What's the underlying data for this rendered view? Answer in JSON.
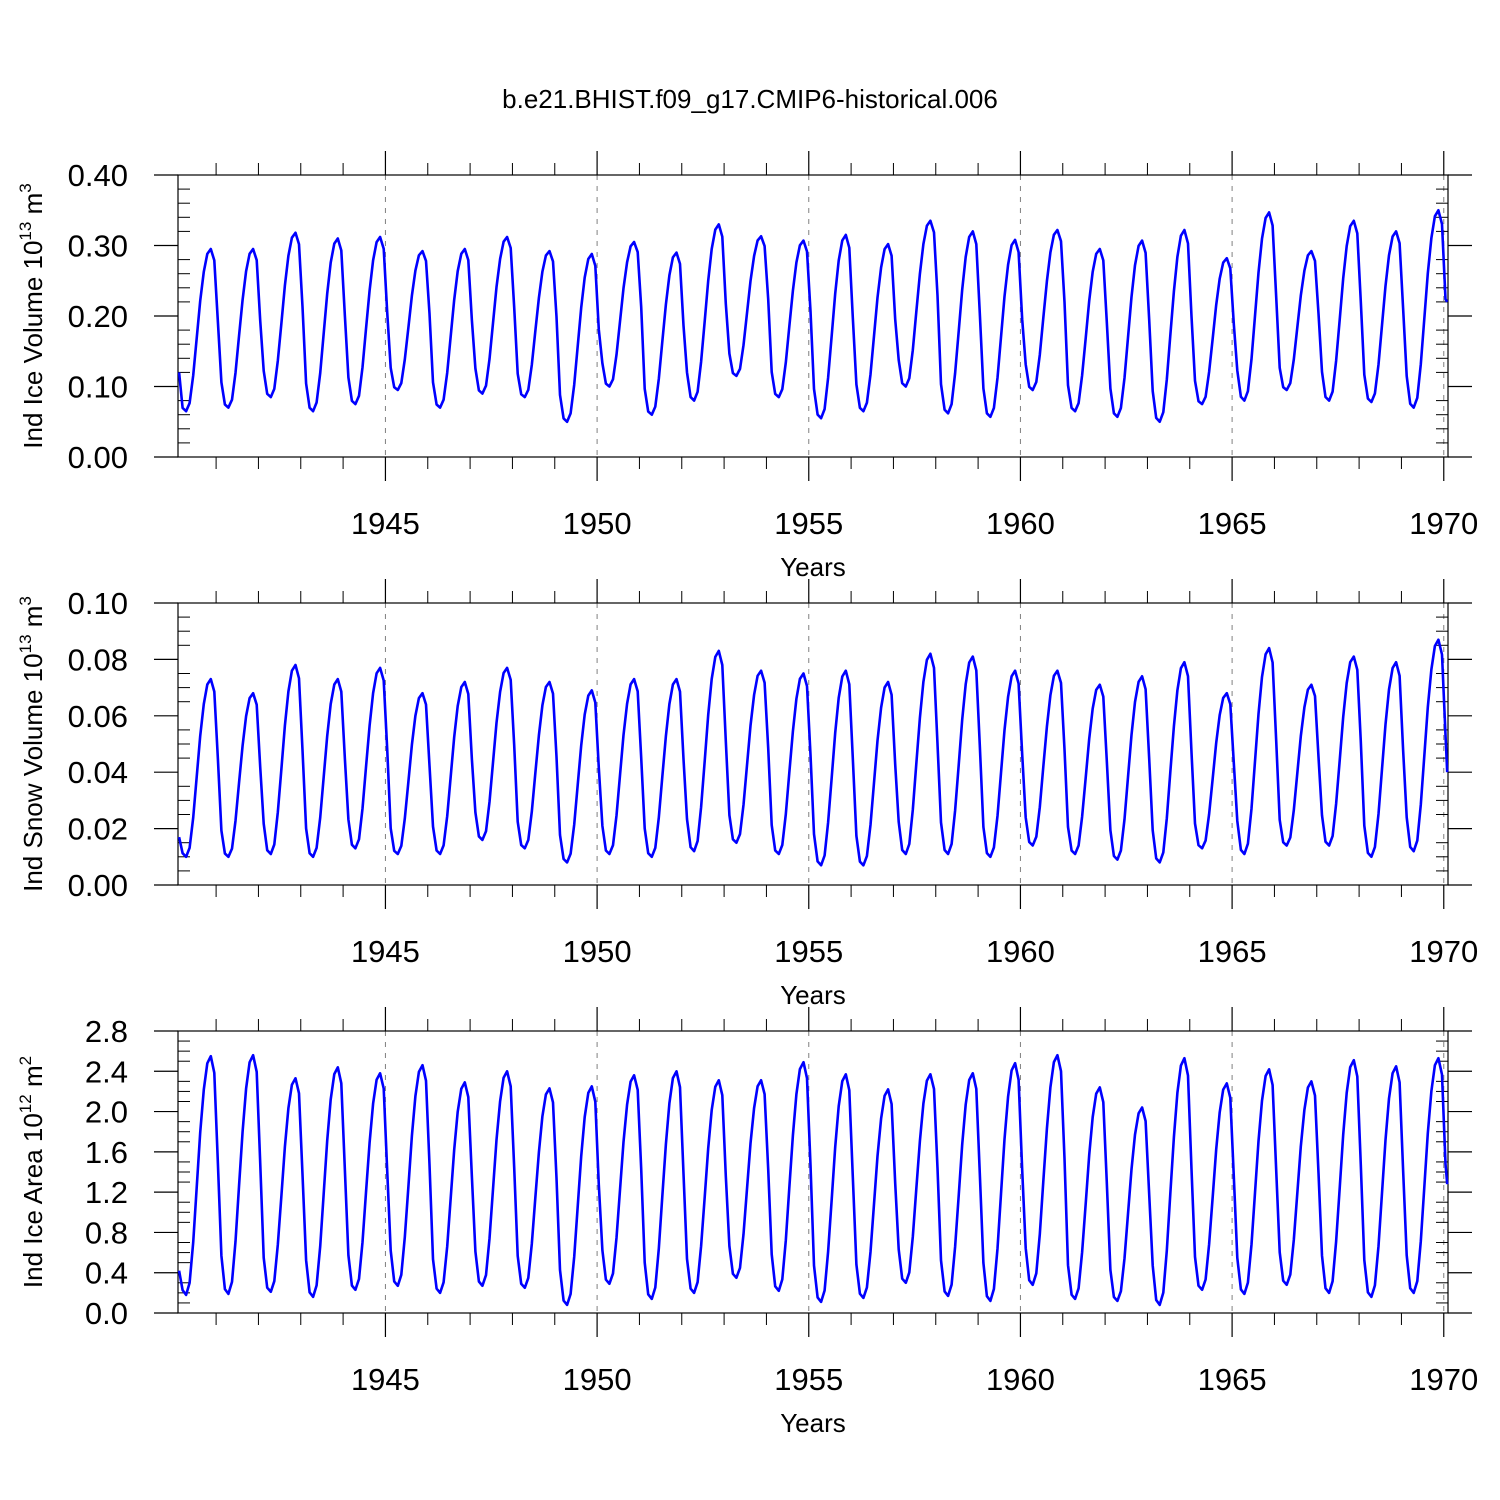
{
  "title": "b.e21.BHIST.f09_g17.CMIP6-historical.006",
  "colors": {
    "line": "#0000ff",
    "frame": "#000000",
    "grid": "#808080"
  },
  "chart_data": [
    {
      "type": "line",
      "id": "ice-volume",
      "ylabel_main": "Ind Ice Volume 10",
      "ylabel_exp": "13",
      "ylabel_unit": " m",
      "ylabel_unit_exp": "3",
      "xlabel": "Years",
      "xlim": [
        1940.1,
        1970.1
      ],
      "ylim": [
        0,
        0.4
      ],
      "yticks": [
        0.0,
        0.1,
        0.2,
        0.3,
        0.4
      ],
      "ytick_labels": [
        "0.00",
        "0.10",
        "0.20",
        "0.30",
        "0.40"
      ],
      "yminor_step": 0.02,
      "xticks": [
        1945,
        1950,
        1955,
        1960,
        1965,
        1970
      ],
      "xtick_labels": [
        "1945",
        "1950",
        "1955",
        "1960",
        "1965",
        "1970"
      ],
      "xminor_step": 1,
      "grid": "vertical-dashed",
      "series": [
        {
          "name": "Ind Ice Volume",
          "x_start": 1940.125,
          "x_step": 0.08333,
          "annual_min": [
            0.065,
            0.07,
            0.085,
            0.065,
            0.075,
            0.095,
            0.07,
            0.09,
            0.085,
            0.05,
            0.1,
            0.06,
            0.08,
            0.115,
            0.085,
            0.055,
            0.065,
            0.1,
            0.062,
            0.057,
            0.095,
            0.065,
            0.057,
            0.05,
            0.075,
            0.08,
            0.095,
            0.08,
            0.078,
            0.07
          ],
          "annual_max": [
            0.295,
            0.295,
            0.318,
            0.31,
            0.312,
            0.292,
            0.295,
            0.312,
            0.292,
            0.288,
            0.305,
            0.29,
            0.33,
            0.313,
            0.307,
            0.315,
            0.302,
            0.335,
            0.32,
            0.308,
            0.322,
            0.295,
            0.307,
            0.322,
            0.282,
            0.347,
            0.292,
            0.335,
            0.32,
            0.35
          ],
          "start_value": 0.12,
          "end_value": 0.22
        }
      ]
    },
    {
      "type": "line",
      "id": "snow-volume",
      "ylabel_main": "Ind Snow Volume 10",
      "ylabel_exp": "13",
      "ylabel_unit": " m",
      "ylabel_unit_exp": "3",
      "xlabel": "Years",
      "xlim": [
        1940.1,
        1970.1
      ],
      "ylim": [
        0,
        0.1
      ],
      "yticks": [
        0.0,
        0.02,
        0.04,
        0.06,
        0.08,
        0.1
      ],
      "ytick_labels": [
        "0.00",
        "0.02",
        "0.04",
        "0.06",
        "0.08",
        "0.10"
      ],
      "yminor_step": 0.005,
      "xticks": [
        1945,
        1950,
        1955,
        1960,
        1965,
        1970
      ],
      "xtick_labels": [
        "1945",
        "1950",
        "1955",
        "1960",
        "1965",
        "1970"
      ],
      "xminor_step": 1,
      "grid": "vertical-dashed",
      "series": [
        {
          "name": "Ind Snow Volume",
          "x_start": 1940.125,
          "x_step": 0.08333,
          "annual_min": [
            0.01,
            0.01,
            0.011,
            0.01,
            0.013,
            0.011,
            0.011,
            0.016,
            0.013,
            0.008,
            0.011,
            0.01,
            0.012,
            0.015,
            0.011,
            0.007,
            0.007,
            0.011,
            0.011,
            0.01,
            0.014,
            0.011,
            0.009,
            0.008,
            0.013,
            0.011,
            0.014,
            0.014,
            0.01,
            0.012
          ],
          "annual_max": [
            0.073,
            0.068,
            0.078,
            0.073,
            0.077,
            0.068,
            0.072,
            0.077,
            0.072,
            0.069,
            0.073,
            0.073,
            0.083,
            0.076,
            0.075,
            0.076,
            0.072,
            0.082,
            0.081,
            0.076,
            0.076,
            0.071,
            0.074,
            0.079,
            0.068,
            0.084,
            0.071,
            0.081,
            0.079,
            0.087
          ],
          "start_value": 0.017,
          "end_value": 0.04
        }
      ]
    },
    {
      "type": "line",
      "id": "ice-area",
      "ylabel_main": "Ind Ice Area 10",
      "ylabel_exp": "12",
      "ylabel_unit": " m",
      "ylabel_unit_exp": "2",
      "xlabel": "Years",
      "xlim": [
        1940.1,
        1970.1
      ],
      "ylim": [
        0,
        2.8
      ],
      "yticks": [
        0.0,
        0.4,
        0.8,
        1.2,
        1.6,
        2.0,
        2.4,
        2.8
      ],
      "ytick_labels": [
        "0.0",
        "0.4",
        "0.8",
        "1.2",
        "1.6",
        "2.0",
        "2.4",
        "2.8"
      ],
      "yminor_step": 0.1,
      "xticks": [
        1945,
        1950,
        1955,
        1960,
        1965,
        1970
      ],
      "xtick_labels": [
        "1945",
        "1950",
        "1955",
        "1960",
        "1965",
        "1970"
      ],
      "xminor_step": 1,
      "grid": "vertical-dashed",
      "series": [
        {
          "name": "Ind Ice Area",
          "x_start": 1940.125,
          "x_step": 0.08333,
          "annual_min": [
            0.18,
            0.19,
            0.21,
            0.16,
            0.23,
            0.27,
            0.2,
            0.27,
            0.25,
            0.08,
            0.29,
            0.14,
            0.2,
            0.35,
            0.22,
            0.11,
            0.15,
            0.3,
            0.17,
            0.12,
            0.28,
            0.14,
            0.12,
            0.08,
            0.23,
            0.19,
            0.28,
            0.2,
            0.16,
            0.2
          ],
          "annual_max": [
            2.55,
            2.56,
            2.33,
            2.44,
            2.38,
            2.46,
            2.29,
            2.4,
            2.23,
            2.25,
            2.36,
            2.4,
            2.31,
            2.31,
            2.49,
            2.37,
            2.22,
            2.37,
            2.38,
            2.48,
            2.56,
            2.24,
            2.04,
            2.53,
            2.28,
            2.42,
            2.3,
            2.51,
            2.45,
            2.53
          ],
          "start_value": 0.42,
          "end_value": 1.28
        }
      ]
    }
  ]
}
